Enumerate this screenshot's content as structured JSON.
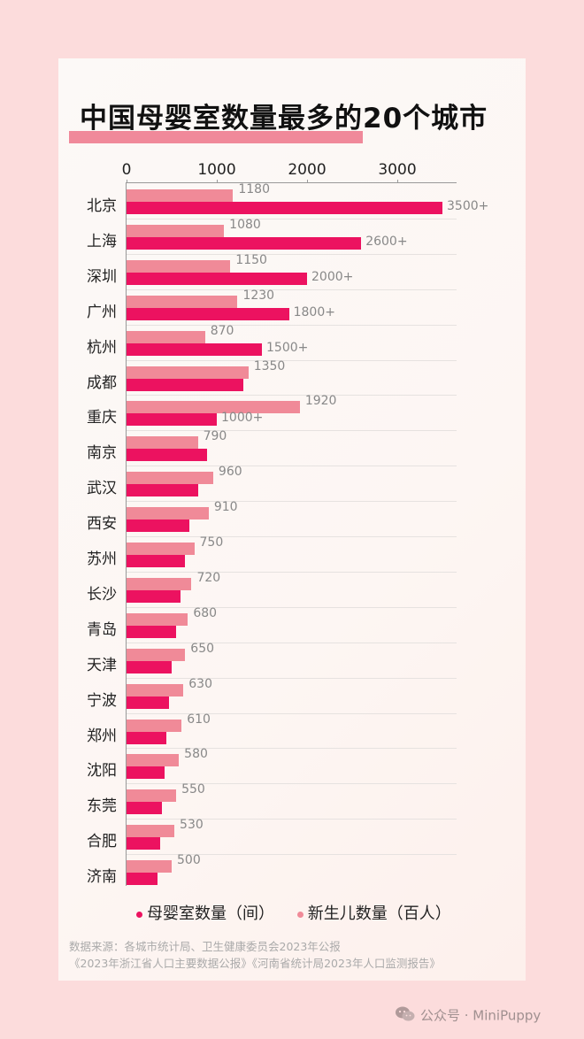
{
  "title": "中国母婴室数量最多的20个城市",
  "colors": {
    "background": "#fcdcdc",
    "card": "#fcf8f5",
    "nursing_rooms": "#ec1260",
    "newborns": "#f08a98",
    "title_bar": "#f0899a"
  },
  "axis": {
    "ticks": [
      "0",
      "1000",
      "2000",
      "3000"
    ]
  },
  "legend": {
    "nursing_rooms": "母婴室数量（间）",
    "newborns": "新生儿数量（百人）"
  },
  "source": {
    "line1": "数据来源：各城市统计局、卫生健康委员会2023年公报",
    "line2": "《2023年浙江省人口主要数据公报》《河南省统计局2023年人口监测报告》"
  },
  "footer": {
    "label": "公众号 · MiniPuppy"
  },
  "rows": [
    {
      "city": "北京",
      "newborn": 1180,
      "newborn_label": "1180",
      "room": 3500,
      "room_label": "3500+"
    },
    {
      "city": "上海",
      "newborn": 1080,
      "newborn_label": "1080",
      "room": 2600,
      "room_label": "2600+"
    },
    {
      "city": "深圳",
      "newborn": 1150,
      "newborn_label": "1150",
      "room": 2000,
      "room_label": "2000+"
    },
    {
      "city": "广州",
      "newborn": 1230,
      "newborn_label": "1230",
      "room": 1800,
      "room_label": "1800+"
    },
    {
      "city": "杭州",
      "newborn": 870,
      "newborn_label": "870",
      "room": 1500,
      "room_label": "1500+"
    },
    {
      "city": "成都",
      "newborn": 1350,
      "newborn_label": "1350",
      "room": 1290,
      "room_label": ""
    },
    {
      "city": "重庆",
      "newborn": 1920,
      "newborn_label": "1920",
      "room": 1000,
      "room_label": "1000+"
    },
    {
      "city": "南京",
      "newborn": 790,
      "newborn_label": "790",
      "room": 890,
      "room_label": ""
    },
    {
      "city": "武汉",
      "newborn": 960,
      "newborn_label": "960",
      "room": 790,
      "room_label": ""
    },
    {
      "city": "西安",
      "newborn": 910,
      "newborn_label": "910",
      "room": 700,
      "room_label": ""
    },
    {
      "city": "苏州",
      "newborn": 750,
      "newborn_label": "750",
      "room": 650,
      "room_label": ""
    },
    {
      "city": "长沙",
      "newborn": 720,
      "newborn_label": "720",
      "room": 600,
      "room_label": ""
    },
    {
      "city": "青岛",
      "newborn": 680,
      "newborn_label": "680",
      "room": 550,
      "room_label": ""
    },
    {
      "city": "天津",
      "newborn": 650,
      "newborn_label": "650",
      "room": 500,
      "room_label": ""
    },
    {
      "city": "宁波",
      "newborn": 630,
      "newborn_label": "630",
      "room": 470,
      "room_label": ""
    },
    {
      "city": "郑州",
      "newborn": 610,
      "newborn_label": "610",
      "room": 440,
      "room_label": ""
    },
    {
      "city": "沈阳",
      "newborn": 580,
      "newborn_label": "580",
      "room": 420,
      "room_label": ""
    },
    {
      "city": "东莞",
      "newborn": 550,
      "newborn_label": "550",
      "room": 390,
      "room_label": ""
    },
    {
      "city": "合肥",
      "newborn": 530,
      "newborn_label": "530",
      "room": 370,
      "room_label": ""
    },
    {
      "city": "济南",
      "newborn": 500,
      "newborn_label": "500",
      "room": 340,
      "room_label": ""
    }
  ],
  "chart_data": {
    "type": "bar",
    "orientation": "horizontal",
    "title": "中国母婴室数量最多的20个城市",
    "categories": [
      "北京",
      "上海",
      "深圳",
      "广州",
      "杭州",
      "成都",
      "重庆",
      "南京",
      "武汉",
      "西安",
      "苏州",
      "长沙",
      "青岛",
      "天津",
      "宁波",
      "郑州",
      "沈阳",
      "东莞",
      "合肥",
      "济南"
    ],
    "series": [
      {
        "name": "新生儿数量（百人）",
        "color": "#f08a98",
        "values": [
          1180,
          1080,
          1150,
          1230,
          870,
          1350,
          1920,
          790,
          960,
          910,
          750,
          720,
          680,
          650,
          630,
          610,
          580,
          550,
          530,
          500
        ]
      },
      {
        "name": "母婴室数量（间）",
        "color": "#ec1260",
        "values": [
          3500,
          2600,
          2000,
          1800,
          1500,
          1290,
          1000,
          890,
          790,
          700,
          650,
          600,
          550,
          500,
          470,
          440,
          420,
          390,
          370,
          340
        ]
      }
    ],
    "xlabel": "",
    "ylabel": "",
    "xlim": [
      0,
      3650
    ],
    "x_ticks": [
      0,
      1000,
      2000,
      3000
    ],
    "grid": "horizontal row separators",
    "legend_position": "bottom"
  }
}
